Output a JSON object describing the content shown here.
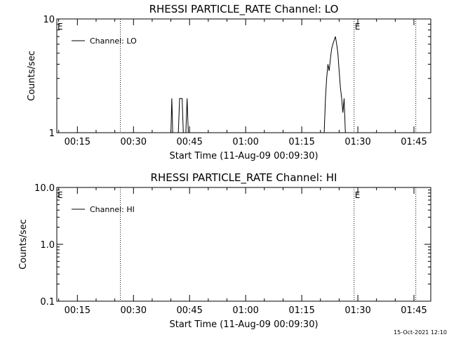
{
  "chart_data": [
    {
      "type": "line",
      "title": "RHESSI PARTICLE_RATE Channel: LO",
      "xlabel": "Start Time (11-Aug-09 00:09:30)",
      "ylabel": "Counts/sec",
      "yscale": "log",
      "ylim": [
        1,
        10
      ],
      "yticks": [
        {
          "v": 1,
          "label": "1"
        },
        {
          "v": 10,
          "label": "10"
        }
      ],
      "xlim": [
        "00:09:30",
        "01:49:30"
      ],
      "xticks": [
        "00:15",
        "00:30",
        "00:45",
        "01:00",
        "01:15",
        "01:30",
        "01:45"
      ],
      "grid": false,
      "legend": "top-left",
      "legend_label": "Channel: LO",
      "event_markers": [
        {
          "time": "00:09:30",
          "label": "E"
        },
        {
          "time": "00:26:30",
          "label": ""
        },
        {
          "time": "01:29:00",
          "label": "E"
        },
        {
          "time": "01:45:30",
          "label": ""
        }
      ],
      "series": [
        {
          "name": "Channel: LO",
          "points": [
            [
              "00:09:30",
              1
            ],
            [
              "00:40:00",
              1
            ],
            [
              "00:40:15",
              2
            ],
            [
              "00:40:30",
              1
            ],
            [
              "00:42:00",
              1
            ],
            [
              "00:42:20",
              2
            ],
            [
              "00:43:00",
              2
            ],
            [
              "00:43:20",
              1
            ],
            [
              "00:44:00",
              1
            ],
            [
              "00:44:20",
              2
            ],
            [
              "00:44:40",
              1
            ],
            [
              "01:21:00",
              1
            ],
            [
              "01:21:20",
              2
            ],
            [
              "01:21:40",
              3
            ],
            [
              "01:22:00",
              4
            ],
            [
              "01:22:20",
              3.5
            ],
            [
              "01:22:40",
              4.5
            ],
            [
              "01:23:00",
              5.5
            ],
            [
              "01:23:20",
              6
            ],
            [
              "01:23:40",
              6.5
            ],
            [
              "01:24:00",
              7
            ],
            [
              "01:24:20",
              6
            ],
            [
              "01:24:40",
              5
            ],
            [
              "01:25:00",
              3.5
            ],
            [
              "01:25:20",
              2.5
            ],
            [
              "01:25:40",
              2
            ],
            [
              "01:26:00",
              1.5
            ],
            [
              "01:26:20",
              2
            ],
            [
              "01:26:40",
              1
            ],
            [
              "01:49:30",
              1
            ]
          ]
        }
      ]
    },
    {
      "type": "line",
      "title": "RHESSI PARTICLE_RATE Channel: HI",
      "xlabel": "Start Time (11-Aug-09 00:09:30)",
      "ylabel": "Counts/sec",
      "yscale": "log",
      "ylim": [
        0.1,
        10
      ],
      "yticks": [
        {
          "v": 0.1,
          "label": "0.1"
        },
        {
          "v": 1,
          "label": "1.0"
        },
        {
          "v": 10,
          "label": "10.0"
        }
      ],
      "xlim": [
        "00:09:30",
        "01:49:30"
      ],
      "xticks": [
        "00:15",
        "00:30",
        "00:45",
        "01:00",
        "01:15",
        "01:30",
        "01:45"
      ],
      "grid": false,
      "legend": "top-left",
      "legend_label": "Channel: HI",
      "event_markers": [
        {
          "time": "00:09:30",
          "label": "E"
        },
        {
          "time": "00:26:30",
          "label": ""
        },
        {
          "time": "01:29:00",
          "label": "E"
        },
        {
          "time": "01:45:30",
          "label": ""
        }
      ],
      "series": [
        {
          "name": "Channel: HI",
          "points": []
        }
      ]
    }
  ],
  "footer": {
    "timestamp": "15-Oct-2021 12:10"
  }
}
